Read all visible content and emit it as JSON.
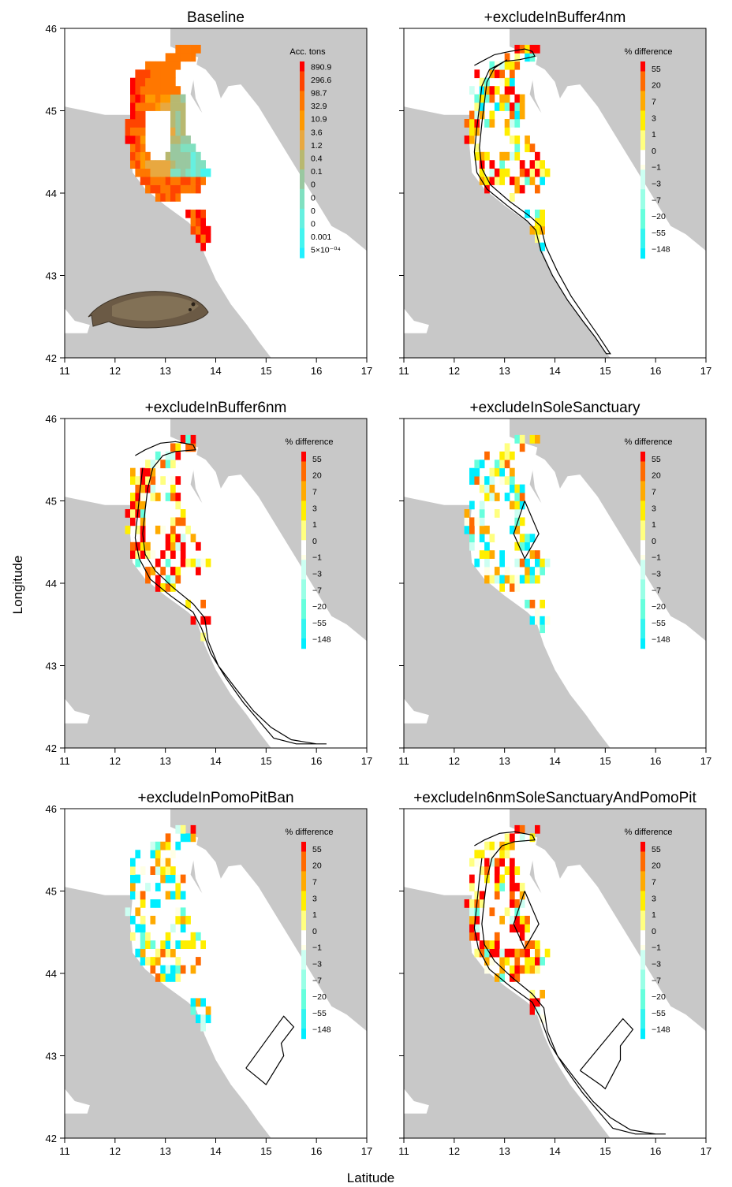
{
  "figure": {
    "x_axis_label": "Latitude",
    "y_axis_label": "Longitude",
    "x_ticks": [
      "11",
      "12",
      "13",
      "14",
      "15",
      "16",
      "17"
    ],
    "y_ticks": [
      "42",
      "43",
      "44",
      "45",
      "46"
    ]
  },
  "colors": {
    "land": "#c8c8c8",
    "sea": "#ffffff",
    "outline": "#000000",
    "diff_ramp": [
      "#ff0000",
      "#ff6a00",
      "#ffaa00",
      "#ffee00",
      "#ffff80",
      "#ffffe6",
      "#ccfff2",
      "#99ffe6",
      "#66ffdd",
      "#33f5f0",
      "#00eeff"
    ],
    "baseline_ramp": [
      "#ff0000",
      "#ff4400",
      "#ff7700",
      "#ff9900",
      "#e8a840",
      "#b8b870",
      "#99c8a0",
      "#80e0c0",
      "#66f0e0",
      "#44f5f0",
      "#22f0ff"
    ]
  },
  "panels": [
    {
      "title": "Baseline",
      "legend_title": "Acc. tons",
      "legend_labels": [
        "890.9",
        "296.6",
        "98.7",
        "32.9",
        "10.9",
        "3.6",
        "1.2",
        "0.4",
        "0.1",
        "0",
        "0",
        "0",
        "0",
        "0.001",
        "5×10⁻⁰⁴"
      ],
      "overlay": "none",
      "fish_picture": true
    },
    {
      "title": "+excludeInBuffer4nm",
      "legend_title": "% difference",
      "legend_labels": [
        "55",
        "20",
        "7",
        "3",
        "1",
        "0",
        "−1",
        "−3",
        "−7",
        "−20",
        "−55",
        "−148"
      ],
      "overlay": "buffer4nm"
    },
    {
      "title": "+excludeInBuffer6nm",
      "legend_title": "% difference",
      "legend_labels": [
        "55",
        "20",
        "7",
        "3",
        "1",
        "0",
        "−1",
        "−3",
        "−7",
        "−20",
        "−55",
        "−148"
      ],
      "overlay": "buffer6nm"
    },
    {
      "title": "+excludeInSoleSanctuary",
      "legend_title": "% difference",
      "legend_labels": [
        "55",
        "20",
        "7",
        "3",
        "1",
        "0",
        "−1",
        "−3",
        "−7",
        "−20",
        "−55",
        "−148"
      ],
      "overlay": "sole_sanctuary"
    },
    {
      "title": "+excludeInPomoPitBan",
      "legend_title": "% difference",
      "legend_labels": [
        "55",
        "20",
        "7",
        "3",
        "1",
        "0",
        "−1",
        "−3",
        "−7",
        "−20",
        "−55",
        "−148"
      ],
      "overlay": "pomo_pit"
    },
    {
      "title": "+excludeIn6nmSoleSanctuaryAndPomoPit",
      "legend_title": "% difference",
      "legend_labels": [
        "55",
        "20",
        "7",
        "3",
        "1",
        "0",
        "−1",
        "−3",
        "−7",
        "−20",
        "−55",
        "−148"
      ],
      "overlay": "combined"
    }
  ]
}
